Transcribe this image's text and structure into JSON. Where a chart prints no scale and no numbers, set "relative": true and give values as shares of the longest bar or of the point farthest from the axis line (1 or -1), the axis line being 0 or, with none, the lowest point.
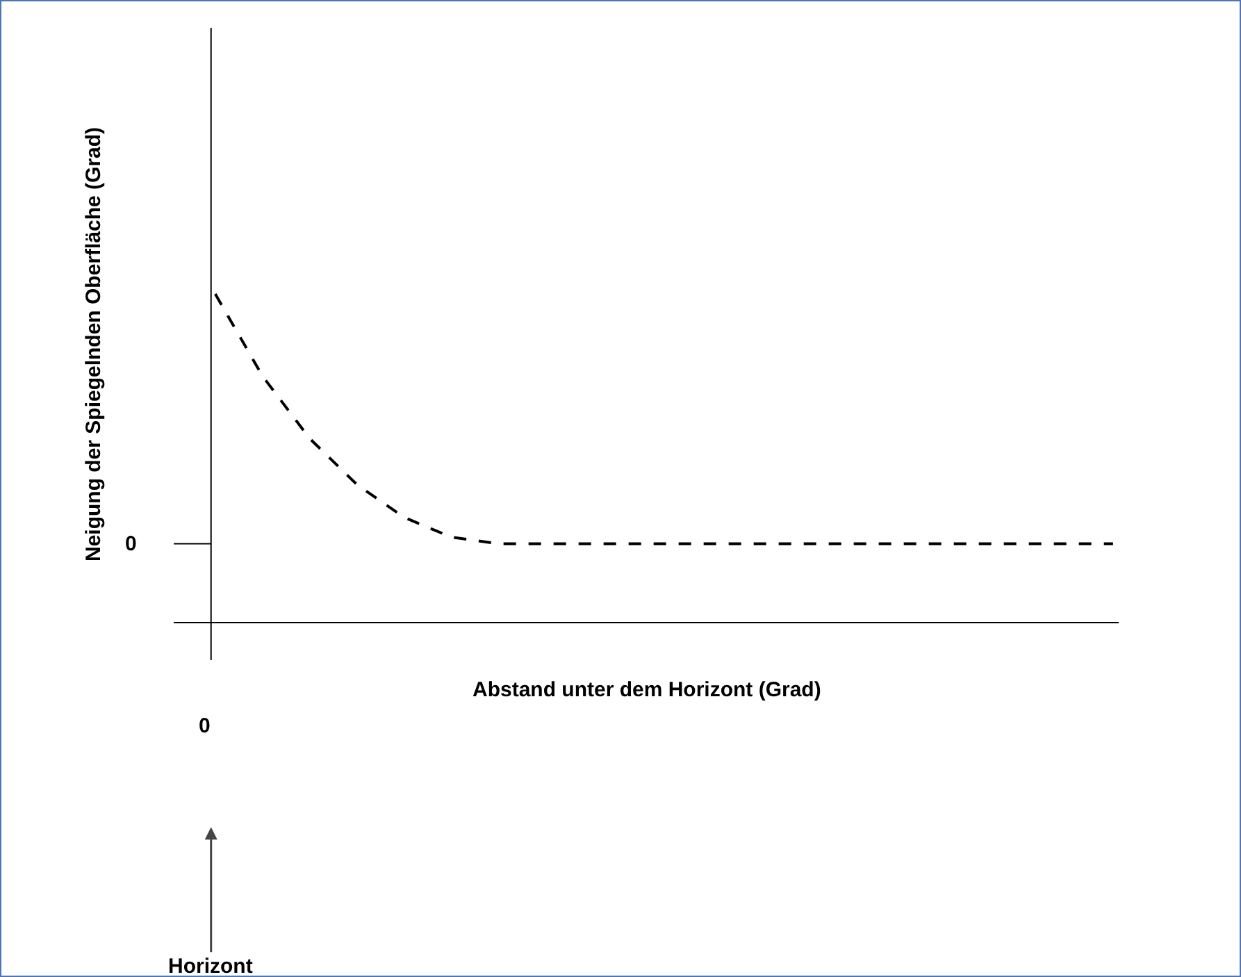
{
  "chart_data": {
    "type": "line",
    "relative": true,
    "xlabel": "Abstand unter dem Horizont (Grad)",
    "ylabel": "Neigung der Spiegelnden Oberfläche (Grad)",
    "categories": [
      null,
      null,
      null,
      null,
      null,
      null,
      null,
      null,
      null,
      null,
      null,
      null,
      null,
      null,
      null,
      null,
      null,
      null,
      null,
      null
    ],
    "series": [
      {
        "color": "#000000",
        "values": [
          1,
          0.75,
          0.56,
          0.42,
          0.32,
          0.26,
          0.24,
          0.24,
          0.24,
          0.24,
          0.24,
          0.24,
          0.24,
          0.24,
          0.24,
          0.24,
          0.24,
          0.24,
          0.24,
          0.24
        ]
      }
    ],
    "annotations": [
      "0",
      "0",
      "Horizont"
    ],
    "line_style": "dashed",
    "marker": "none",
    "grid": false
  }
}
